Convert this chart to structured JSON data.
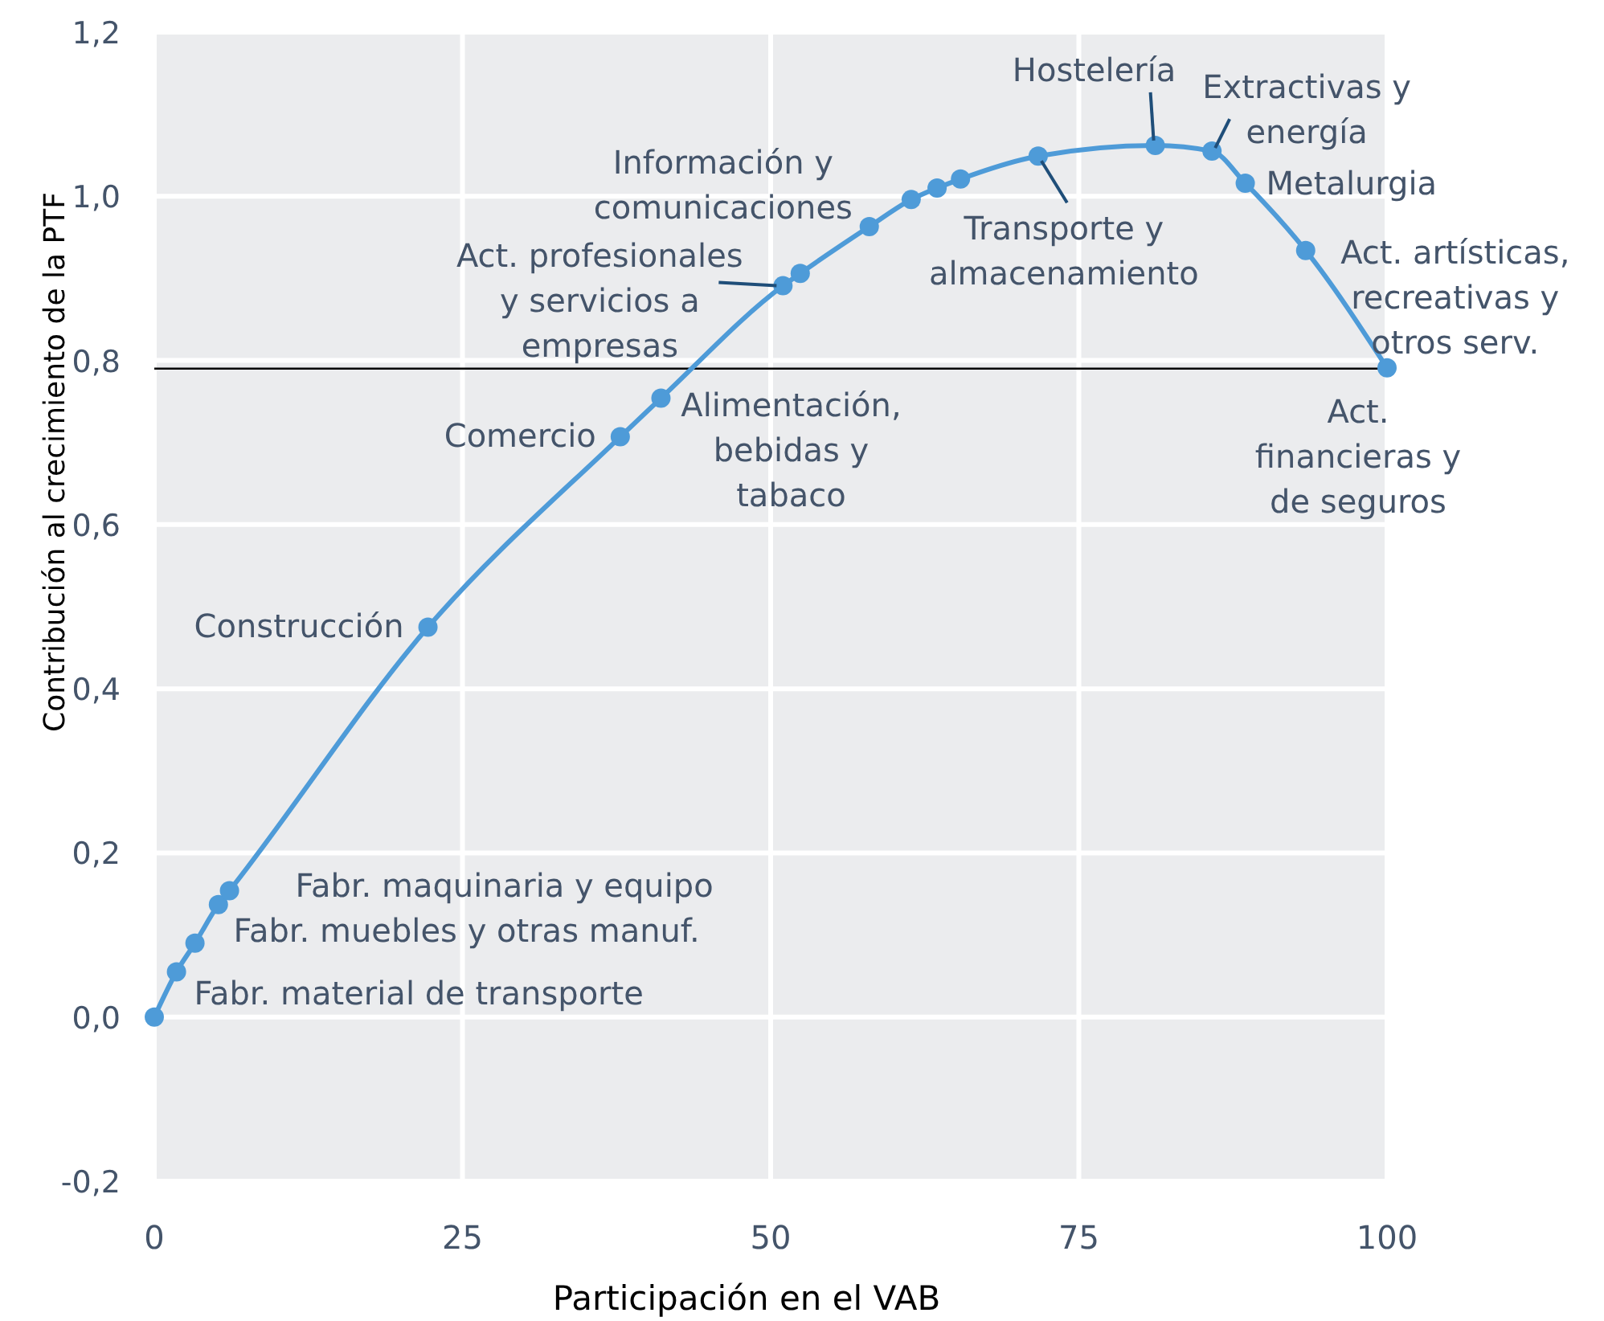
{
  "chart_data": {
    "type": "line",
    "xlabel": "Participación en el VAB",
    "ylabel": "Contribución al crecimiento de la PTF",
    "x": [
      0,
      1.8,
      3.3,
      5.2,
      6.1,
      22.2,
      37.8,
      41.1,
      51.0,
      52.4,
      58.0,
      61.4,
      63.5,
      65.4,
      71.7,
      81.2,
      85.8,
      88.5,
      93.4,
      100
    ],
    "series": [
      {
        "color": "#4e9bd8",
        "values": [
          0,
          0.055,
          0.09,
          0.137,
          0.154,
          0.475,
          0.707,
          0.754,
          0.891,
          0.906,
          0.963,
          0.996,
          1.01,
          1.021,
          1.049,
          1.062,
          1.055,
          1.016,
          0.934,
          0.791
        ]
      }
    ],
    "marker": "circle",
    "grid": true,
    "xlim": [
      0,
      100
    ],
    "ylim": [
      -0.2,
      1.2
    ],
    "xticks": [
      0,
      25,
      50,
      75,
      100
    ],
    "yticks": [
      {
        "value": -0.2,
        "label": "-0,2"
      },
      {
        "value": 0,
        "label": "0,0"
      },
      {
        "value": 0.2,
        "label": "0,2"
      },
      {
        "value": 0.4,
        "label": "0,4"
      },
      {
        "value": 0.6,
        "label": "0,6"
      },
      {
        "value": 0.8,
        "label": "0,8"
      },
      {
        "value": 1.0,
        "label": "1,0"
      },
      {
        "value": 1.2,
        "label": "1,2"
      }
    ],
    "ref_lines": [
      {
        "axis": "y",
        "value": 0.79,
        "color": "#000000"
      }
    ],
    "annotations": [
      {
        "text": "Fabr. material de transporte",
        "x": 1.8,
        "y": 0.055
      },
      {
        "text": "Fabr. muebles y otras manuf.",
        "x": 3.3,
        "y": 0.09
      },
      {
        "text": "Fabr. maquinaria y equipo",
        "x": 6.1,
        "y": 0.154
      },
      {
        "text": "Construcción",
        "x": 22.2,
        "y": 0.475
      },
      {
        "text": "Comercio",
        "x": 37.8,
        "y": 0.707
      },
      {
        "text": "Alimentación,\nbebidas y\ntabaco",
        "x": 41.1,
        "y": 0.754
      },
      {
        "text": "Act. profesionales\ny servicios a\nempresas",
        "x": 51.0,
        "y": 0.891
      },
      {
        "text": "Información y\ncomunicaciones",
        "x": 52.4,
        "y": 0.906
      },
      {
        "text": "Transporte y\nalmacenamiento",
        "x": 71.7,
        "y": 1.049
      },
      {
        "text": "Hostelería",
        "x": 81.2,
        "y": 1.062
      },
      {
        "text": "Extractivas y\nenergía",
        "x": 85.8,
        "y": 1.055
      },
      {
        "text": "Metalurgia",
        "x": 88.5,
        "y": 1.016
      },
      {
        "text": "Act. artísticas,\nrecreativas y\notros serv.",
        "x": 93.4,
        "y": 0.934
      },
      {
        "text": "Act.\nfinancieras y\nde seguros",
        "x": 100,
        "y": 0.791
      }
    ]
  }
}
